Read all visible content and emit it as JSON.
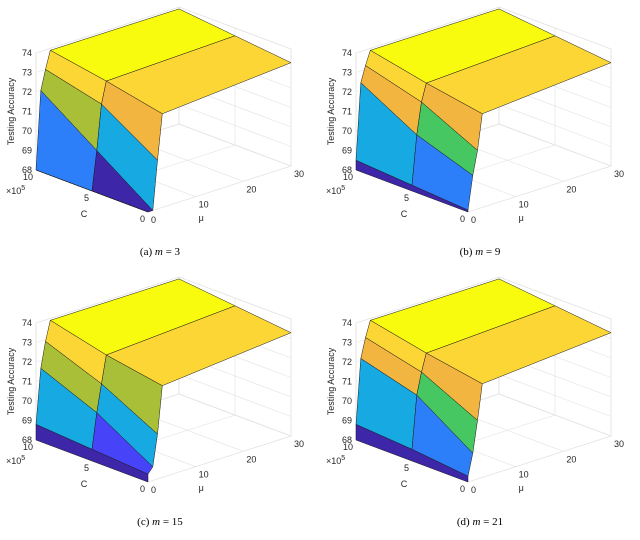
{
  "chart_data": [
    {
      "type": "surface3d",
      "caption_prefix": "(a)",
      "caption_var": "m",
      "caption_eq": " = 3",
      "zlabel": "Testing Accuracy",
      "xlabel": "C",
      "ylabel": "μ",
      "c_exponent": "×10",
      "c_exponent_power": "5",
      "zticks": [
        "68",
        "69",
        "70",
        "71",
        "72",
        "73",
        "74"
      ],
      "cticks": [
        "10",
        "5",
        "0"
      ],
      "muticks": [
        "0",
        "10",
        "20",
        "30"
      ],
      "zlim": [
        68,
        74
      ],
      "clim": [
        0,
        1000000
      ],
      "mulim": [
        0,
        30
      ],
      "c_grid": [
        1000000,
        500000,
        0
      ],
      "mu_grid": [
        0,
        1,
        2,
        3,
        30
      ],
      "z": [
        [
          68.0,
          72.0,
          73.0,
          73.9,
          73.9
        ],
        [
          68.0,
          70.0,
          72.3,
          73.4,
          73.6
        ],
        [
          68.0,
          68.0,
          70.5,
          72.8,
          73.3
        ]
      ]
    },
    {
      "type": "surface3d",
      "caption_prefix": "(b)",
      "caption_var": "m",
      "caption_eq": " = 9",
      "zlabel": "Testing Accuracy",
      "xlabel": "C",
      "ylabel": "μ",
      "c_exponent": "×10",
      "c_exponent_power": "5",
      "zticks": [
        "68",
        "69",
        "70",
        "71",
        "72",
        "73",
        "74"
      ],
      "cticks": [
        "10",
        "5",
        "0"
      ],
      "muticks": [
        "0",
        "10",
        "20",
        "30"
      ],
      "zlim": [
        68,
        74
      ],
      "clim": [
        0,
        1000000
      ],
      "mulim": [
        0,
        30
      ],
      "c_grid": [
        1000000,
        500000,
        0
      ],
      "mu_grid": [
        0,
        1,
        2,
        3,
        30
      ],
      "z": [
        [
          68.5,
          72.4,
          73.2,
          73.9,
          73.9
        ],
        [
          68.3,
          70.8,
          72.4,
          73.3,
          73.6
        ],
        [
          68.1,
          69.8,
          71.0,
          72.8,
          73.3
        ]
      ]
    },
    {
      "type": "surface3d",
      "caption_prefix": "(c)",
      "caption_var": "m",
      "caption_eq": " = 15",
      "zlabel": "Testing Accuracy",
      "xlabel": "C",
      "ylabel": "μ",
      "c_exponent": "×10",
      "c_exponent_power": "5",
      "zticks": [
        "68",
        "69",
        "70",
        "71",
        "72",
        "73",
        "74"
      ],
      "cticks": [
        "10",
        "5",
        "0"
      ],
      "muticks": [
        "0",
        "10",
        "20",
        "30"
      ],
      "zlim": [
        68,
        74
      ],
      "clim": [
        0,
        1000000
      ],
      "mulim": [
        0,
        30
      ],
      "c_grid": [
        1000000,
        500000,
        0
      ],
      "mu_grid": [
        0,
        1,
        2,
        3,
        30
      ],
      "z": [
        [
          68.8,
          71.6,
          72.9,
          73.9,
          73.9
        ],
        [
          68.6,
          70.4,
          71.8,
          73.2,
          73.6
        ],
        [
          68.4,
          68.7,
          70.3,
          72.7,
          73.3
        ]
      ]
    },
    {
      "type": "surface3d",
      "caption_prefix": "(d)",
      "caption_var": "m",
      "caption_eq": " = 21",
      "zlabel": "Testing Accuracy",
      "xlabel": "C",
      "ylabel": "μ",
      "c_exponent": "×10",
      "c_exponent_power": "5",
      "zticks": [
        "68",
        "69",
        "70",
        "71",
        "72",
        "73",
        "74"
      ],
      "cticks": [
        "10",
        "5",
        "0"
      ],
      "muticks": [
        "0",
        "10",
        "20",
        "30"
      ],
      "zlim": [
        68,
        74
      ],
      "clim": [
        0,
        1000000
      ],
      "mulim": [
        0,
        30
      ],
      "c_grid": [
        1000000,
        500000,
        0
      ],
      "mu_grid": [
        0,
        1,
        2,
        3,
        30
      ],
      "z": [
        [
          68.8,
          72.1,
          73.1,
          73.9,
          73.9
        ],
        [
          68.6,
          71.3,
          72.4,
          73.3,
          73.6
        ],
        [
          68.3,
          69.4,
          71.0,
          72.8,
          73.3
        ]
      ]
    }
  ],
  "colormap": [
    "#3e26a8",
    "#4743f8",
    "#2d7ff9",
    "#17a9e2",
    "#1cbfa0",
    "#46c762",
    "#a9bf38",
    "#f2b53f",
    "#fbd635",
    "#f9fb0e"
  ]
}
